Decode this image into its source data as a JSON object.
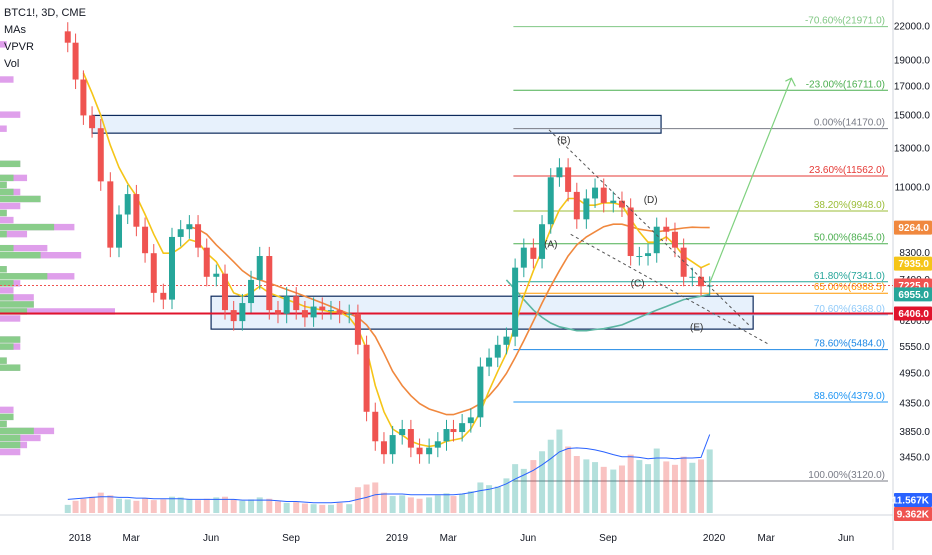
{
  "header": {
    "symbol": "BTC1!, 3D, CME",
    "indicators": [
      "MAs",
      "VPVR",
      "Vol"
    ]
  },
  "colors": {
    "up": "#26a69a",
    "down": "#ef5350",
    "ma_fast": "#f5c518",
    "ma_mid": "#f0883e",
    "ma_slow": "#5bb5a2",
    "vpvr_up": "#7fd27f",
    "vpvr_down": "#d98ee8",
    "support_red": "#e0142c",
    "vol_line": "#2962ff"
  },
  "chart_data": {
    "type": "line",
    "title": "",
    "x_axis_labels": [
      "2018",
      "Mar",
      "Jun",
      "Sep",
      "2019",
      "Mar",
      "Jun",
      "Sep",
      "2020",
      "Mar",
      "Jun"
    ],
    "y_axis_labels": [
      "22000.0",
      "19000.0",
      "17000.0",
      "15000.0",
      "13000.0",
      "11000.0",
      "9300.0",
      "8300.0",
      "7400.0",
      "6200.0",
      "5550.0",
      "4950.0",
      "4350.0",
      "3850.0",
      "3450.0"
    ],
    "y_scale": "log",
    "ylim": [
      2900,
      24000
    ],
    "price_series": {
      "name": "BTC1!",
      "x": [
        "2017-12-18",
        "2017-12-27",
        "2018-01-05",
        "2018-01-15",
        "2018-01-25",
        "2018-02-05",
        "2018-02-15",
        "2018-02-25",
        "2018-03-07",
        "2018-03-17",
        "2018-03-27",
        "2018-04-07",
        "2018-04-17",
        "2018-04-27",
        "2018-05-07",
        "2018-05-17",
        "2018-05-27",
        "2018-06-07",
        "2018-06-17",
        "2018-06-27",
        "2018-07-07",
        "2018-07-17",
        "2018-07-27",
        "2018-08-07",
        "2018-08-17",
        "2018-08-27",
        "2018-09-07",
        "2018-09-17",
        "2018-09-27",
        "2018-10-07",
        "2018-10-17",
        "2018-10-27",
        "2018-11-07",
        "2018-11-17",
        "2018-11-27",
        "2018-12-07",
        "2018-12-17",
        "2018-12-27",
        "2019-01-07",
        "2019-01-17",
        "2019-01-27",
        "2019-02-07",
        "2019-02-17",
        "2019-02-27",
        "2019-03-07",
        "2019-03-17",
        "2019-03-27",
        "2019-04-07",
        "2019-04-17",
        "2019-04-27",
        "2019-05-07",
        "2019-05-17",
        "2019-05-27",
        "2019-06-07",
        "2019-06-17",
        "2019-06-27",
        "2019-07-07",
        "2019-07-17",
        "2019-07-27",
        "2019-08-07",
        "2019-08-17",
        "2019-08-27",
        "2019-09-07",
        "2019-09-17",
        "2019-09-27",
        "2019-10-07",
        "2019-10-17",
        "2019-10-27",
        "2019-11-07",
        "2019-11-17",
        "2019-11-27",
        "2019-12-07",
        "2019-12-17",
        "2019-12-27"
      ],
      "values": [
        20500,
        17500,
        15000,
        14200,
        11300,
        8500,
        9800,
        10700,
        9300,
        8300,
        7000,
        6800,
        8900,
        9200,
        9400,
        8500,
        7500,
        7600,
        6500,
        6200,
        6700,
        7400,
        8200,
        6500,
        6400,
        6900,
        6500,
        6300,
        6600,
        6500,
        6500,
        6400,
        6400,
        5600,
        4200,
        3700,
        3500,
        3800,
        3900,
        3600,
        3500,
        3600,
        3700,
        3900,
        3850,
        4000,
        4100,
        5100,
        5300,
        5600,
        5800,
        7800,
        8500,
        8100,
        9400,
        11500,
        12000,
        10800,
        9600,
        10500,
        11000,
        10300,
        10400,
        10100,
        8200,
        8200,
        8300,
        9300,
        9100,
        8500,
        7500,
        7500,
        7200,
        7225
      ]
    },
    "ma_fast": {
      "values": [
        null,
        null,
        18000,
        16500,
        15000,
        13200,
        12000,
        11200,
        10600,
        9800,
        9000,
        8300,
        8300,
        8500,
        8800,
        8700,
        8300,
        8000,
        7500,
        7000,
        6900,
        7000,
        7200,
        7000,
        6900,
        6800,
        6700,
        6600,
        6550,
        6500,
        6450,
        6450,
        6300,
        6000,
        5500,
        4700,
        4200,
        3900,
        3800,
        3700,
        3650,
        3620,
        3640,
        3700,
        3720,
        3750,
        3900,
        4200,
        4600,
        5000,
        5400,
        6100,
        6900,
        7700,
        8400,
        9200,
        10000,
        10500,
        10500,
        10200,
        10200,
        10300,
        10300,
        10200,
        9600,
        9100,
        8700,
        8700,
        8900,
        8600,
        8200,
        8000,
        7800,
        7935
      ]
    },
    "ma_mid": {
      "values": [
        null,
        null,
        null,
        null,
        null,
        null,
        null,
        null,
        null,
        null,
        null,
        null,
        null,
        null,
        9300,
        9200,
        9000,
        8600,
        8300,
        8000,
        7700,
        7500,
        7400,
        7300,
        7200,
        7100,
        7000,
        6900,
        6800,
        6700,
        6600,
        6500,
        6400,
        6300,
        6100,
        5800,
        5400,
        5000,
        4700,
        4500,
        4350,
        4250,
        4200,
        4150,
        4150,
        4200,
        4250,
        4350,
        4500,
        4700,
        4950,
        5300,
        5700,
        6200,
        6700,
        7200,
        7700,
        8200,
        8600,
        8900,
        9100,
        9300,
        9400,
        9400,
        9300,
        9200,
        9150,
        9100,
        9150,
        9200,
        9250,
        9280,
        9270,
        9264
      ]
    },
    "ma_slow": {
      "values": [
        null,
        null,
        null,
        null,
        null,
        null,
        null,
        null,
        null,
        null,
        null,
        null,
        null,
        null,
        null,
        null,
        null,
        null,
        null,
        null,
        null,
        null,
        null,
        null,
        null,
        null,
        null,
        null,
        null,
        null,
        null,
        null,
        null,
        null,
        null,
        null,
        null,
        null,
        null,
        null,
        null,
        null,
        null,
        null,
        null,
        null,
        null,
        null,
        null,
        null,
        7400,
        7100,
        6800,
        6500,
        6300,
        6150,
        6050,
        6000,
        5950,
        5950,
        5980,
        6000,
        6050,
        6100,
        6200,
        6300,
        6400,
        6500,
        6600,
        6700,
        6800,
        6850,
        6900,
        6955
      ]
    },
    "fib_levels": [
      {
        "label": "-70.60%(21971.0)",
        "value": 21971,
        "color": "#81c784"
      },
      {
        "label": "-23.00%(16711.0)",
        "value": 16711,
        "color": "#4caf50"
      },
      {
        "label": "0.00%(14170.0)",
        "value": 14170,
        "color": "#787b86"
      },
      {
        "label": "23.60%(11562.0)",
        "value": 11562,
        "color": "#e53935"
      },
      {
        "label": "38.20%(9948.0)",
        "value": 9948,
        "color": "#9bbd37"
      },
      {
        "label": "50.00%(8645.0)",
        "value": 8645,
        "color": "#4caf50"
      },
      {
        "label": "61.80%(7341.0)",
        "value": 7341,
        "color": "#26a69a"
      },
      {
        "label": "65.00%(6988.5)",
        "value": 6988.5,
        "color": "#ff9800"
      },
      {
        "label": "70.60%(6368.0)",
        "value": 6368,
        "color": "#90caf9"
      },
      {
        "label": "78.60%(5484.0)",
        "value": 5484,
        "color": "#1e88e5"
      },
      {
        "label": "88.60%(4379.0)",
        "value": 4379,
        "color": "#2196f3"
      },
      {
        "label": "100.00%(3120.0)",
        "value": 3120,
        "color": "#787b86"
      }
    ],
    "wave_labels": [
      "(A)",
      "(B)",
      "(C)",
      "(D)",
      "(E)"
    ],
    "price_badges": [
      {
        "text": "9264.0",
        "value": 9264,
        "color": "#f0883e"
      },
      {
        "text": "7935.0",
        "value": 7935,
        "color": "#f5c518",
        "text_color": "#131722"
      },
      {
        "text": "7225.0",
        "value": 7225,
        "color": "#ef5350"
      },
      {
        "text": "6955.0",
        "value": 6955,
        "color": "#26a69a"
      },
      {
        "text": "6406.0",
        "value": 6406,
        "color": "#e0142c"
      }
    ],
    "volume_badges": [
      {
        "text": "11.567K",
        "color": "#2962ff"
      },
      {
        "text": "9.362K",
        "color": "#ef5350"
      }
    ],
    "support_level": 6406,
    "last_price": 7225,
    "zones": [
      {
        "name": "resistance-zone",
        "y1": 13900,
        "y2": 15000
      },
      {
        "name": "support-zone",
        "y1": 5990,
        "y2": 6900
      }
    ],
    "volume": {
      "values": [
        1.2,
        1.8,
        2.1,
        2.4,
        3.0,
        2.6,
        2.1,
        2.0,
        1.8,
        2.2,
        1.9,
        2.0,
        2.4,
        2.3,
        2.0,
        1.9,
        2.1,
        2.3,
        2.4,
        2.0,
        1.8,
        2.0,
        2.3,
        2.1,
        1.7,
        1.5,
        1.6,
        1.4,
        1.3,
        1.2,
        1.2,
        1.5,
        1.3,
        3.8,
        4.2,
        4.5,
        3.0,
        2.5,
        2.6,
        2.3,
        2.1,
        2.3,
        2.6,
        2.9,
        2.5,
        2.8,
        3.2,
        4.5,
        4.1,
        3.9,
        5.1,
        7.2,
        6.5,
        7.8,
        9.1,
        10.8,
        12.3,
        9.8,
        8.4,
        7.9,
        7.5,
        6.8,
        6.4,
        7.0,
        8.6,
        7.8,
        7.2,
        9.5,
        7.6,
        7.1,
        8.3,
        7.4,
        7.9,
        9.362
      ],
      "avg": [
        2.0,
        2.1,
        2.2,
        2.3,
        2.4,
        2.4,
        2.3,
        2.3,
        2.2,
        2.2,
        2.1,
        2.1,
        2.1,
        2.1,
        2.0,
        2.0,
        2.0,
        2.0,
        2.0,
        2.0,
        1.9,
        1.9,
        1.9,
        1.9,
        1.8,
        1.7,
        1.7,
        1.6,
        1.5,
        1.5,
        1.5,
        1.6,
        1.7,
        2.0,
        2.3,
        2.7,
        2.8,
        2.8,
        2.8,
        2.7,
        2.7,
        2.7,
        2.7,
        2.7,
        2.7,
        2.8,
        3.0,
        3.3,
        3.5,
        3.8,
        4.3,
        5.0,
        5.6,
        6.3,
        7.1,
        8.0,
        9.0,
        9.5,
        9.6,
        9.5,
        9.3,
        9.0,
        8.6,
        8.3,
        8.3,
        8.2,
        8.0,
        8.1,
        8.1,
        8.0,
        8.1,
        8.1,
        8.2,
        11.567
      ]
    }
  }
}
